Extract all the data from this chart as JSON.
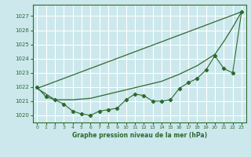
{
  "title": "Graphe pression niveau de la mer (hPa)",
  "bg_color": "#cce8ed",
  "grid_color": "#ffffff",
  "line_color": "#2d6a2d",
  "xlim": [
    -0.5,
    23.5
  ],
  "ylim": [
    1019.5,
    1027.8
  ],
  "yticks": [
    1020,
    1021,
    1022,
    1023,
    1024,
    1025,
    1026,
    1027
  ],
  "xticks": [
    0,
    1,
    2,
    3,
    4,
    5,
    6,
    7,
    8,
    9,
    10,
    11,
    12,
    13,
    14,
    15,
    16,
    17,
    18,
    19,
    20,
    21,
    22,
    23
  ],
  "hourly": {
    "x": [
      0,
      1,
      2,
      3,
      4,
      5,
      6,
      7,
      8,
      9,
      10,
      11,
      12,
      13,
      14,
      15,
      16,
      17,
      18,
      19,
      20,
      21,
      22,
      23
    ],
    "y": [
      1022.0,
      1021.3,
      1021.1,
      1020.8,
      1020.3,
      1020.1,
      1020.0,
      1020.3,
      1020.4,
      1020.5,
      1021.1,
      1021.5,
      1021.4,
      1021.0,
      1021.0,
      1021.1,
      1021.9,
      1022.3,
      1022.6,
      1023.2,
      1024.2,
      1023.3,
      1023.0,
      1027.3
    ]
  },
  "line_straight": {
    "x": [
      0,
      23
    ],
    "y": [
      1021.9,
      1027.3
    ]
  },
  "line_curved": {
    "x": [
      0,
      2,
      4,
      6,
      8,
      10,
      12,
      14,
      16,
      18,
      20,
      21,
      22,
      23
    ],
    "y": [
      1021.9,
      1021.1,
      1021.1,
      1021.2,
      1021.5,
      1021.8,
      1022.1,
      1022.4,
      1022.9,
      1023.5,
      1024.3,
      1025.2,
      1026.2,
      1027.3
    ]
  }
}
